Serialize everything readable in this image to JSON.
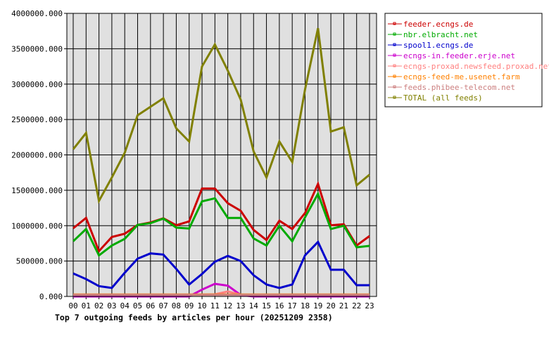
{
  "chart_data": {
    "type": "line",
    "title": "Top 7 outgoing feeds by articles per hour (20251209 2358)",
    "xlabel": "",
    "ylabel": "",
    "ylim": [
      0,
      4000000
    ],
    "grid": true,
    "legend_placement": "right",
    "plot_background": "#e0e0e0",
    "categories": [
      "00",
      "01",
      "02",
      "03",
      "04",
      "05",
      "06",
      "07",
      "08",
      "09",
      "10",
      "11",
      "12",
      "13",
      "14",
      "15",
      "16",
      "17",
      "18",
      "19",
      "20",
      "21",
      "22",
      "23"
    ],
    "yticks": [
      0,
      500000,
      1000000,
      1500000,
      2000000,
      2500000,
      3000000,
      3500000,
      4000000
    ],
    "ytick_labels": [
      "0.000",
      "500000.000",
      "1000000.000",
      "1500000.000",
      "2000000.000",
      "2500000.000",
      "3000000.000",
      "3500000.000",
      "4000000.000"
    ],
    "series": [
      {
        "name": "feeder.ecngs.de",
        "color": "#cc0000",
        "values": [
          963000,
          1110000,
          640000,
          840000,
          886000,
          1010000,
          1045000,
          1105000,
          1005000,
          1060000,
          1525000,
          1525000,
          1317000,
          1210000,
          940000,
          797000,
          1070000,
          953000,
          1180000,
          1590000,
          1005000,
          1020000,
          720000,
          854000
        ]
      },
      {
        "name": "nbr.elbracht.net",
        "color": "#00aa00",
        "values": [
          780000,
          953000,
          580000,
          720000,
          814000,
          1010000,
          1035000,
          1100000,
          973000,
          960000,
          1343000,
          1387000,
          1110000,
          1110000,
          820000,
          720000,
          1000000,
          780000,
          1120000,
          1450000,
          953000,
          1000000,
          695000,
          715000
        ]
      },
      {
        "name": "spool1.ecngs.de",
        "color": "#0000cc",
        "values": [
          325000,
          245000,
          146000,
          120000,
          334000,
          533000,
          608000,
          592000,
          390000,
          169000,
          318000,
          490000,
          573000,
          500000,
          300000,
          169000,
          120000,
          169000,
          583000,
          770000,
          377000,
          377000,
          159000,
          159000
        ]
      },
      {
        "name": "ecngs-in.feeder.erje.net",
        "color": "#cc00cc",
        "values": [
          0,
          0,
          0,
          0,
          0,
          0,
          0,
          0,
          0,
          0,
          96000,
          179000,
          152000,
          20000,
          0,
          0,
          0,
          0,
          0,
          0,
          0,
          0,
          0,
          0
        ]
      },
      {
        "name": "ecngs-proxad.newsfeed.proxad.net",
        "color": "#ff8080",
        "values": [
          25000,
          25000,
          25000,
          25000,
          25000,
          25000,
          25000,
          25000,
          25000,
          25000,
          25000,
          30000,
          70000,
          25000,
          25000,
          25000,
          25000,
          25000,
          25000,
          25000,
          25000,
          25000,
          25000,
          25000
        ]
      },
      {
        "name": "ecngs-feed-me.usenet.farm",
        "color": "#ff8000",
        "values": [
          27000,
          27000,
          27000,
          27000,
          27000,
          27000,
          27000,
          27000,
          27000,
          27000,
          27000,
          27000,
          27000,
          27000,
          27000,
          27000,
          27000,
          27000,
          27000,
          27000,
          27000,
          27000,
          27000,
          27000
        ]
      },
      {
        "name": "feeds.phibee-telecom.net",
        "color": "#cc8080",
        "values": [
          22000,
          22000,
          22000,
          22000,
          22000,
          22000,
          22000,
          22000,
          22000,
          22000,
          22000,
          22000,
          22000,
          22000,
          22000,
          22000,
          22000,
          22000,
          22000,
          22000,
          22000,
          22000,
          22000,
          22000
        ]
      },
      {
        "name": "TOTAL (all feeds)",
        "color": "#808000",
        "values": [
          2080000,
          2310000,
          1350000,
          1680000,
          2030000,
          2560000,
          2680000,
          2800000,
          2375000,
          2190000,
          3250000,
          3560000,
          3190000,
          2780000,
          2050000,
          1680000,
          2190000,
          1900000,
          2930000,
          3790000,
          2330000,
          2390000,
          1570000,
          1720000
        ]
      }
    ]
  }
}
